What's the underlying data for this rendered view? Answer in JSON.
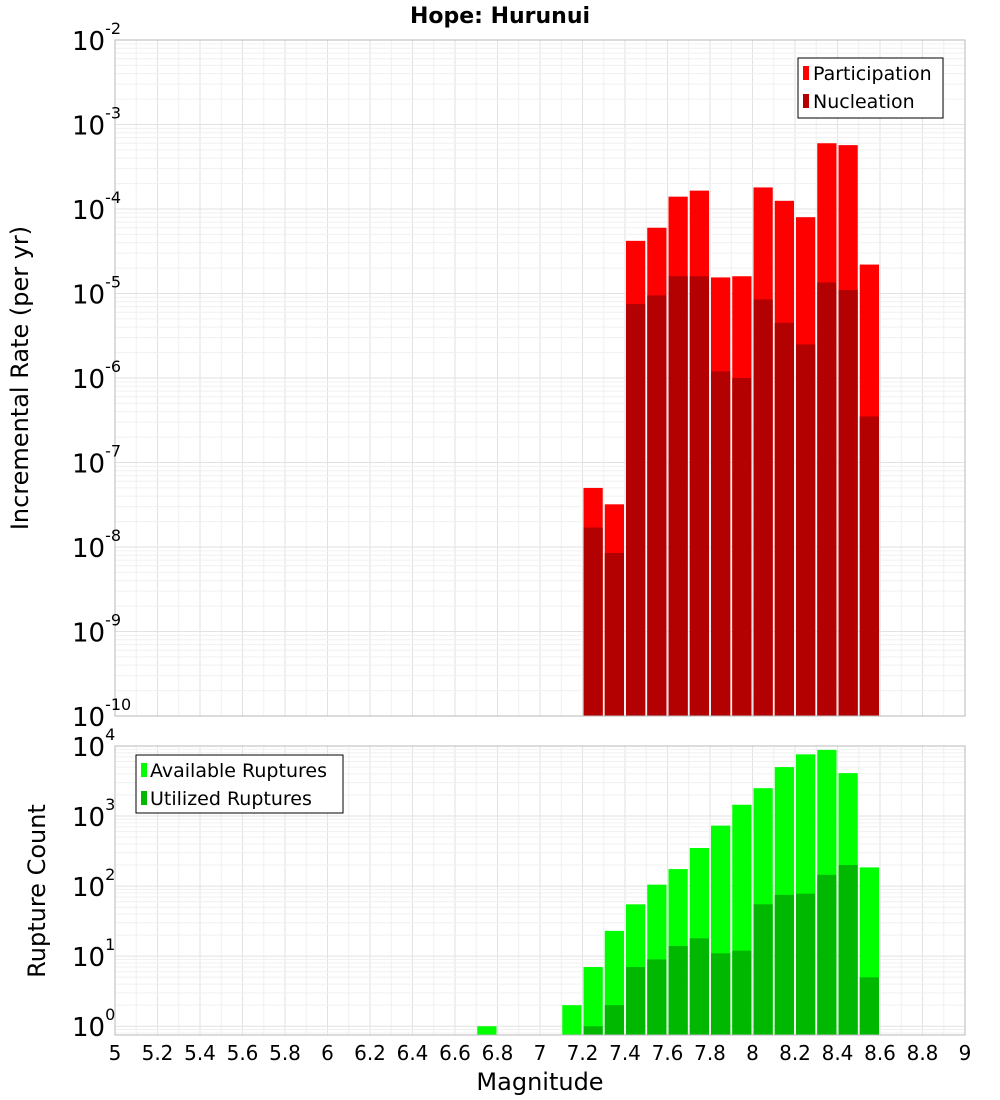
{
  "chart_data": [
    {
      "type": "bar",
      "title": "Hope: Hurunui",
      "ylabel": "Incremental Rate (per yr)",
      "yscale": "log",
      "ylim": [
        1e-10,
        0.01
      ],
      "y_ticks": [
        {
          "base": "10",
          "exp": "-10"
        },
        {
          "base": "10",
          "exp": "-9"
        },
        {
          "base": "10",
          "exp": "-8"
        },
        {
          "base": "10",
          "exp": "-7"
        },
        {
          "base": "10",
          "exp": "-6"
        },
        {
          "base": "10",
          "exp": "-5"
        },
        {
          "base": "10",
          "exp": "-4"
        },
        {
          "base": "10",
          "exp": "-3"
        },
        {
          "base": "10",
          "exp": "-2"
        }
      ],
      "grid": true,
      "legend_position": "top-right",
      "x": [
        7.25,
        7.35,
        7.45,
        7.55,
        7.65,
        7.75,
        7.85,
        7.95,
        8.05,
        8.15,
        8.25,
        8.35,
        8.45,
        8.55
      ],
      "series": [
        {
          "name": "Participation",
          "color": "#ff0000",
          "values": [
            5e-08,
            3.2e-08,
            4.2e-05,
            6e-05,
            0.00014,
            0.000165,
            1.55e-05,
            1.6e-05,
            0.00018,
            0.000125,
            8e-05,
            0.0006,
            0.00057,
            2.2e-05
          ]
        },
        {
          "name": "Nucleation",
          "color": "#b30000",
          "values": [
            1.7e-08,
            8.5e-09,
            7.5e-06,
            9.5e-06,
            1.6e-05,
            1.6e-05,
            1.2e-06,
            1e-06,
            8.5e-06,
            4.5e-06,
            2.5e-06,
            1.35e-05,
            1.1e-05,
            3.5e-07
          ]
        }
      ]
    },
    {
      "type": "bar",
      "ylabel": "Rupture Count",
      "xlabel": "Magnitude",
      "yscale": "log",
      "ylim": [
        0.75,
        10000
      ],
      "y_ticks": [
        {
          "base": "10",
          "exp": "0",
          "value": 1
        },
        {
          "base": "10",
          "exp": "1",
          "value": 10
        },
        {
          "base": "10",
          "exp": "2",
          "value": 100
        },
        {
          "base": "10",
          "exp": "3",
          "value": 1000
        },
        {
          "base": "10",
          "exp": "4",
          "value": 10000
        }
      ],
      "xlim": [
        5,
        9
      ],
      "x_ticks": [
        "5",
        "5.2",
        "5.4",
        "5.6",
        "5.8",
        "6",
        "6.2",
        "6.4",
        "6.6",
        "6.8",
        "7",
        "7.2",
        "7.4",
        "7.6",
        "7.8",
        "8",
        "8.2",
        "8.4",
        "8.6",
        "8.8",
        "9"
      ],
      "grid": true,
      "legend_position": "top-left",
      "x": [
        6.75,
        7.15,
        7.25,
        7.35,
        7.45,
        7.55,
        7.65,
        7.75,
        7.85,
        7.95,
        8.05,
        8.15,
        8.25,
        8.35,
        8.45,
        8.55
      ],
      "series": [
        {
          "name": "Available Ruptures",
          "color": "#00ff00",
          "values": [
            1,
            2,
            7,
            23,
            55,
            105,
            175,
            350,
            730,
            1450,
            2500,
            5000,
            7600,
            8800,
            4100,
            185
          ]
        },
        {
          "name": "Utilized Ruptures",
          "color": "#00b800",
          "values": [
            null,
            null,
            1,
            2,
            7,
            9,
            14,
            18,
            11,
            12,
            55,
            75,
            78,
            145,
            200,
            5
          ]
        }
      ]
    }
  ]
}
